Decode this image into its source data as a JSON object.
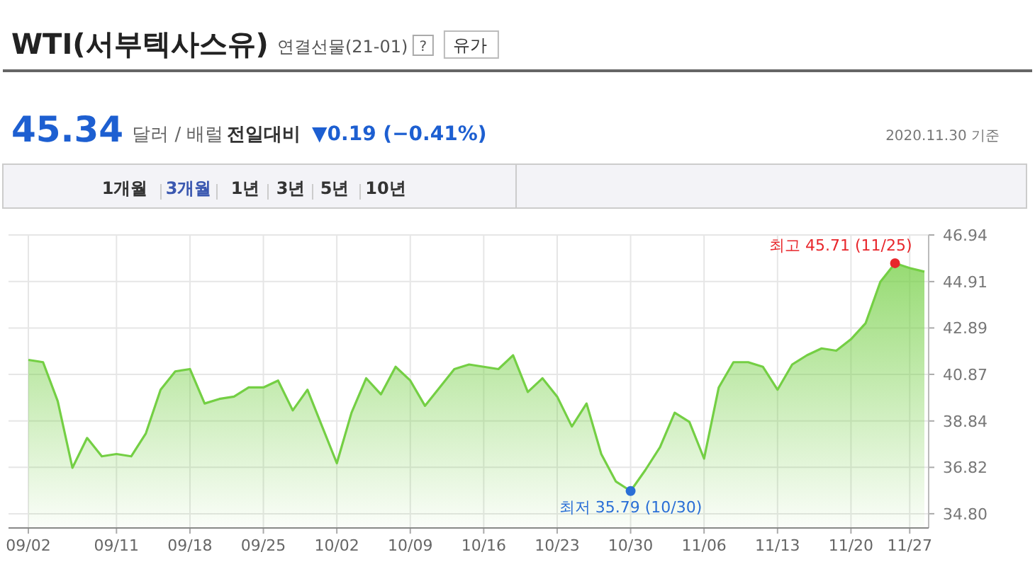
{
  "chart_data": {
    "type": "area",
    "title": "WTI(서부텍사스유)",
    "subtitle": "연결선물(21-01)",
    "categories": [
      "09/02",
      null,
      null,
      null,
      null,
      null,
      "09/11",
      null,
      null,
      null,
      null,
      "09/18",
      null,
      null,
      null,
      null,
      "09/25",
      null,
      null,
      null,
      null,
      "10/02",
      null,
      null,
      null,
      null,
      "10/09",
      null,
      null,
      null,
      null,
      "10/16",
      null,
      null,
      null,
      null,
      "10/23",
      null,
      null,
      null,
      null,
      "10/30",
      null,
      null,
      null,
      null,
      "11/06",
      null,
      null,
      null,
      null,
      "11/13",
      null,
      null,
      null,
      null,
      "11/20",
      null,
      null,
      null,
      "11/27",
      null
    ],
    "series": [
      {
        "color": "#74cf44",
        "values": [
          41.5,
          41.4,
          39.7,
          36.8,
          38.1,
          37.3,
          37.4,
          37.3,
          38.3,
          40.2,
          41.0,
          41.1,
          39.6,
          39.8,
          39.9,
          40.3,
          40.3,
          40.6,
          39.3,
          40.2,
          38.6,
          37.0,
          39.2,
          40.7,
          40.0,
          41.2,
          40.6,
          39.5,
          40.3,
          41.1,
          41.3,
          41.2,
          41.1,
          41.7,
          40.1,
          40.7,
          39.9,
          38.6,
          39.6,
          37.4,
          36.2,
          35.79,
          36.7,
          37.7,
          39.2,
          38.8,
          37.2,
          40.3,
          41.4,
          41.4,
          41.2,
          40.2,
          41.3,
          41.7,
          42.0,
          41.9,
          42.4,
          43.1,
          44.9,
          45.71,
          45.5,
          45.34
        ]
      }
    ],
    "ylim": [
      34.18,
      46.94
    ],
    "yticks": [
      {
        "value": 34.8,
        "label": "34.80"
      },
      36.82,
      38.84,
      40.87,
      42.89,
      44.91,
      46.94
    ],
    "grid": true,
    "annotations": [
      "?",
      "유가",
      "45.34",
      "달러 / 배럴",
      "전일대비",
      "▼0.19 (−0.41%)",
      "2020.11.30 기준",
      "1개월",
      "3개월",
      "1년",
      "3년",
      "5년",
      "10년",
      "최고 45.71 (11/25)",
      "최저 35.79 (10/30)"
    ]
  }
}
